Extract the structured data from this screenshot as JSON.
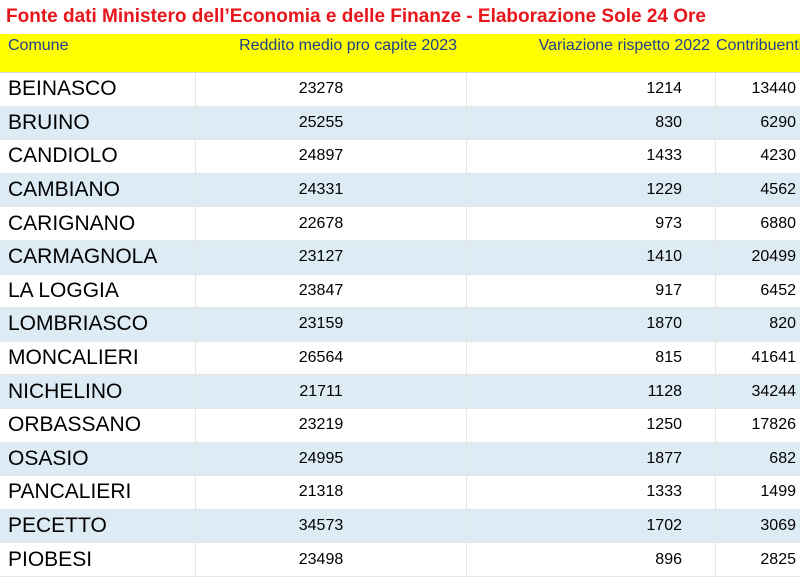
{
  "title": "Fonte dati Ministero dell’Economia e delle Finanze - Elaborazione Sole 24 Ore",
  "colors": {
    "title_text": "#e8161b",
    "header_bg": "#ffff00",
    "header_text": "#1f3f8f",
    "alt_row_bg": "#ddebf5"
  },
  "headers": {
    "comune": "Comune",
    "reddito": "Reddito medio pro capite 2023",
    "variazione": "Variazione rispetto 2022",
    "contribuenti": "Contribuenti"
  },
  "rows": [
    {
      "comune": "BEINASCO",
      "reddito": "23278",
      "variazione": "1214",
      "contribuenti": "13440"
    },
    {
      "comune": "BRUINO",
      "reddito": "25255",
      "variazione": "830",
      "contribuenti": "6290"
    },
    {
      "comune": "CANDIOLO",
      "reddito": "24897",
      "variazione": "1433",
      "contribuenti": "4230"
    },
    {
      "comune": "CAMBIANO",
      "reddito": "24331",
      "variazione": "1229",
      "contribuenti": "4562"
    },
    {
      "comune": "CARIGNANO",
      "reddito": "22678",
      "variazione": "973",
      "contribuenti": "6880"
    },
    {
      "comune": "CARMAGNOLA",
      "reddito": "23127",
      "variazione": "1410",
      "contribuenti": "20499"
    },
    {
      "comune": "LA LOGGIA",
      "reddito": "23847",
      "variazione": "917",
      "contribuenti": "6452"
    },
    {
      "comune": "LOMBRIASCO",
      "reddito": "23159",
      "variazione": "1870",
      "contribuenti": "820"
    },
    {
      "comune": "MONCALIERI",
      "reddito": "26564",
      "variazione": "815",
      "contribuenti": "41641"
    },
    {
      "comune": "NICHELINO",
      "reddito": "21711",
      "variazione": "1128",
      "contribuenti": "34244"
    },
    {
      "comune": "ORBASSANO",
      "reddito": "23219",
      "variazione": "1250",
      "contribuenti": "17826"
    },
    {
      "comune": "OSASIO",
      "reddito": "24995",
      "variazione": "1877",
      "contribuenti": "682"
    },
    {
      "comune": "PANCALIERI",
      "reddito": "21318",
      "variazione": "1333",
      "contribuenti": "1499"
    },
    {
      "comune": "PECETTO",
      "reddito": "34573",
      "variazione": "1702",
      "contribuenti": "3069"
    },
    {
      "comune": "PIOBESI",
      "reddito": "23498",
      "variazione": "896",
      "contribuenti": "2825"
    }
  ]
}
